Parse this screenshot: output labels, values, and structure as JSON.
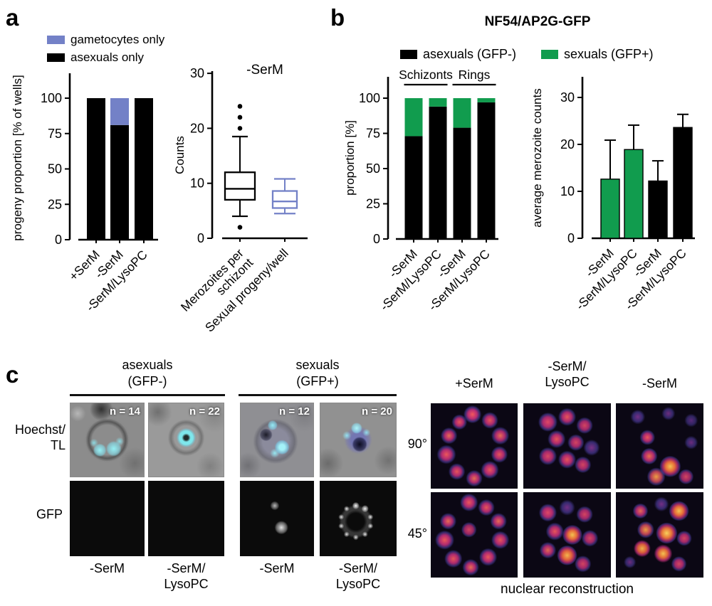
{
  "figure": {
    "panel_a": {
      "label": "a",
      "legend": [
        {
          "label": "gametocytes only",
          "color": "#7381c7"
        },
        {
          "label": "asexuals only",
          "color": "#000000"
        }
      ]
    },
    "panel_b": {
      "label": "b",
      "title": "NF54/AP2G-GFP",
      "legend": [
        {
          "label": "asexuals (GFP-)",
          "color": "#000000"
        },
        {
          "label": "sexuals (GFP+)",
          "color": "#119c4e"
        }
      ]
    },
    "panel_c": {
      "label": "c",
      "left": {
        "group_headers": [
          [
            "asexuals",
            "(GFP-)"
          ],
          [
            "sexuals",
            "(GFP+)"
          ]
        ],
        "row_label_1": [
          "Hoechst/",
          "TL"
        ],
        "row_label_2": "GFP",
        "n_labels": [
          "n = 14",
          "n = 22",
          "n = 12",
          "n = 20"
        ],
        "col_labels": [
          [
            "-SerM"
          ],
          [
            "-SerM/",
            "LysoPC"
          ],
          [
            "-SerM"
          ],
          [
            "-SerM/",
            "LysoPC"
          ]
        ]
      },
      "right": {
        "col_headers": [
          [
            "+SerM"
          ],
          [
            "-SerM/",
            "LysoPC"
          ],
          [
            "-SerM"
          ]
        ],
        "row_labels": [
          "90°",
          "45°"
        ],
        "caption": "nuclear reconstruction"
      }
    }
  },
  "chart_data": [
    {
      "id": "a_progeny",
      "type": "bar",
      "stacked": true,
      "ylabel": "progeny proportion [% of wells]",
      "ylim": [
        0,
        100
      ],
      "yticks": [
        0,
        25,
        50,
        75,
        100
      ],
      "categories": [
        "+SerM",
        "-SerM",
        "-SerM/LysoPC"
      ],
      "series": [
        {
          "name": "asexuals only",
          "color": "#000000",
          "values": [
            100,
            81,
            100
          ]
        },
        {
          "name": "gametocytes only",
          "color": "#7381c7",
          "values": [
            0,
            19,
            0
          ]
        }
      ]
    },
    {
      "id": "a_counts",
      "type": "box",
      "title": "-SerM",
      "ylabel": "Counts",
      "ylim": [
        0,
        30
      ],
      "yticks": [
        0,
        10,
        20,
        30
      ],
      "boxes": [
        {
          "label": [
            "Merozoites per",
            "schizont"
          ],
          "color": "#000000",
          "median": 9,
          "q1": 7,
          "q3": 12,
          "whisker_low": 4,
          "whisker_high": 18.5,
          "outliers": [
            20,
            22,
            24,
            2
          ]
        },
        {
          "label": [
            "Sexual progeny/well"
          ],
          "color": "#7381c7",
          "median": 6.7,
          "q1": 5.5,
          "q3": 8.6,
          "whisker_low": 4.5,
          "whisker_high": 10.8,
          "outliers": []
        }
      ]
    },
    {
      "id": "b_proportion",
      "type": "bar",
      "stacked": true,
      "ylabel": "proportion [%]",
      "ylim": [
        0,
        100
      ],
      "yticks": [
        0,
        25,
        50,
        75,
        100
      ],
      "categories": [
        "-SerM",
        "-SerM/LysoPC",
        "-SerM",
        "-SerM/LysoPC"
      ],
      "group_headers": [
        {
          "label": "Schizonts",
          "span": [
            0,
            1
          ]
        },
        {
          "label": "Rings",
          "span": [
            2,
            3
          ]
        }
      ],
      "series": [
        {
          "name": "asexuals (GFP-)",
          "color": "#000000",
          "values": [
            73,
            94,
            79,
            97
          ]
        },
        {
          "name": "sexuals (GFP+)",
          "color": "#119c4e",
          "values": [
            27,
            6,
            21,
            3
          ]
        }
      ]
    },
    {
      "id": "b_merozoites",
      "type": "bar",
      "stacked": false,
      "ylabel": "average merozoite counts",
      "ylim": [
        0,
        34
      ],
      "yticks": [
        0,
        10,
        20,
        30
      ],
      "categories": [
        "-SerM",
        "-SerM/LysoPC",
        "-SerM",
        "-SerM/LysoPC"
      ],
      "values": [
        12.6,
        18.9,
        12.2,
        23.6
      ],
      "error_up": [
        8.3,
        5.2,
        4.3,
        2.8
      ],
      "bar_colors": [
        "#119c4e",
        "#119c4e",
        "#000000",
        "#000000"
      ]
    }
  ]
}
